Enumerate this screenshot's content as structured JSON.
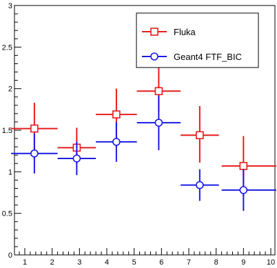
{
  "chart_data": {
    "type": "scatter",
    "title": "",
    "xlabel": "",
    "ylabel": "",
    "xlim": [
      0.5,
      10.2
    ],
    "ylim": [
      0,
      3
    ],
    "grid": false,
    "legend_position": "top-right",
    "x_ticks": [
      "1",
      "2",
      "3",
      "4",
      "5",
      "6",
      "7",
      "8",
      "9",
      "10"
    ],
    "y_ticks": [
      "0",
      "0.5",
      "1",
      "1.5",
      "2",
      "2.5",
      "3"
    ],
    "series": [
      {
        "name": "Fluka",
        "color": "#e81a1a",
        "marker": "open-square",
        "points": [
          {
            "x": 1.35,
            "y": 1.52,
            "xerr": [
              0.85,
              0.85
            ],
            "yerr": [
              0.31,
              0.31
            ]
          },
          {
            "x": 2.9,
            "y": 1.29,
            "xerr": [
              0.7,
              0.7
            ],
            "yerr": [
              0.19,
              0.24
            ]
          },
          {
            "x": 4.35,
            "y": 1.69,
            "xerr": [
              0.75,
              0.75
            ],
            "yerr": [
              0.31,
              0.31
            ]
          },
          {
            "x": 5.9,
            "y": 1.97,
            "xerr": [
              0.8,
              0.8
            ],
            "yerr": [
              0.25,
              0.3
            ]
          },
          {
            "x": 7.4,
            "y": 1.44,
            "xerr": [
              0.7,
              0.7
            ],
            "yerr": [
              0.33,
              0.35
            ]
          },
          {
            "x": 9.0,
            "y": 1.07,
            "xerr": [
              0.8,
              1.2
            ],
            "yerr": [
              0.36,
              0.36
            ]
          }
        ]
      },
      {
        "name": "Geant4 FTF_BIC",
        "color": "#1a1ae8",
        "marker": "open-circle",
        "points": [
          {
            "x": 1.35,
            "y": 1.22,
            "xerr": [
              0.85,
              0.85
            ],
            "yerr": [
              0.24,
              0.24
            ]
          },
          {
            "x": 2.9,
            "y": 1.16,
            "xerr": [
              0.7,
              0.7
            ],
            "yerr": [
              0.2,
              0.2
            ]
          },
          {
            "x": 4.35,
            "y": 1.36,
            "xerr": [
              0.75,
              0.75
            ],
            "yerr": [
              0.24,
              0.24
            ]
          },
          {
            "x": 5.9,
            "y": 1.59,
            "xerr": [
              0.8,
              0.8
            ],
            "yerr": [
              0.33,
              0.33
            ]
          },
          {
            "x": 7.4,
            "y": 0.84,
            "xerr": [
              0.7,
              0.7
            ],
            "yerr": [
              0.19,
              0.19
            ]
          },
          {
            "x": 9.0,
            "y": 0.78,
            "xerr": [
              0.8,
              1.2
            ],
            "yerr": [
              0.25,
              0.25
            ]
          }
        ]
      }
    ]
  }
}
